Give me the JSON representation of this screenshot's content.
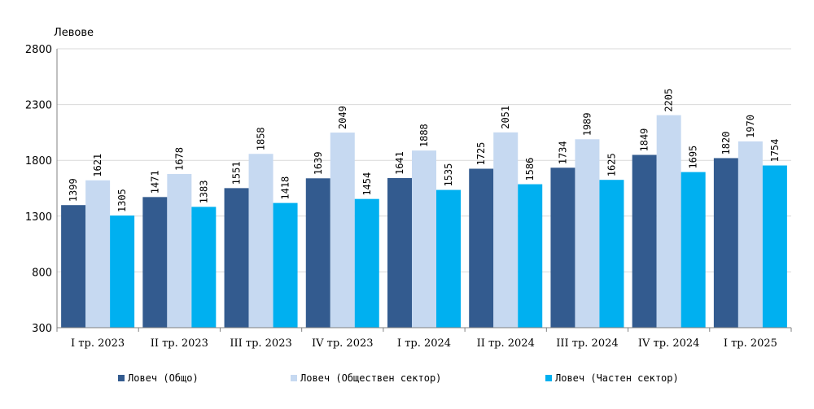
{
  "chart_data": {
    "type": "bar",
    "unit_label": "Левове",
    "categories": [
      "I тр. 2023",
      "II тр. 2023",
      "III тр. 2023",
      "IV тр. 2023",
      "I тр. 2024",
      "II тр. 2024",
      "III тр. 2024",
      "IV тр. 2024",
      "I тр. 2025"
    ],
    "series": [
      {
        "name": "Ловеч (Общо)",
        "color": "#335b8f",
        "values": [
          1399,
          1471,
          1551,
          1639,
          1641,
          1725,
          1734,
          1849,
          1820
        ]
      },
      {
        "name": "Ловеч (Обществен сектор)",
        "color": "#c6d9f1",
        "values": [
          1621,
          1678,
          1858,
          2049,
          1888,
          2051,
          1989,
          2205,
          1970
        ]
      },
      {
        "name": "Ловеч (Частен сектор)",
        "color": "#00b0f0",
        "values": [
          1305,
          1383,
          1418,
          1454,
          1535,
          1586,
          1625,
          1695,
          1754
        ]
      }
    ],
    "ylim": [
      300,
      2800
    ],
    "yticks": [
      300,
      800,
      1300,
      1800,
      2300,
      2800
    ],
    "grid": true,
    "legend_position": "bottom"
  }
}
